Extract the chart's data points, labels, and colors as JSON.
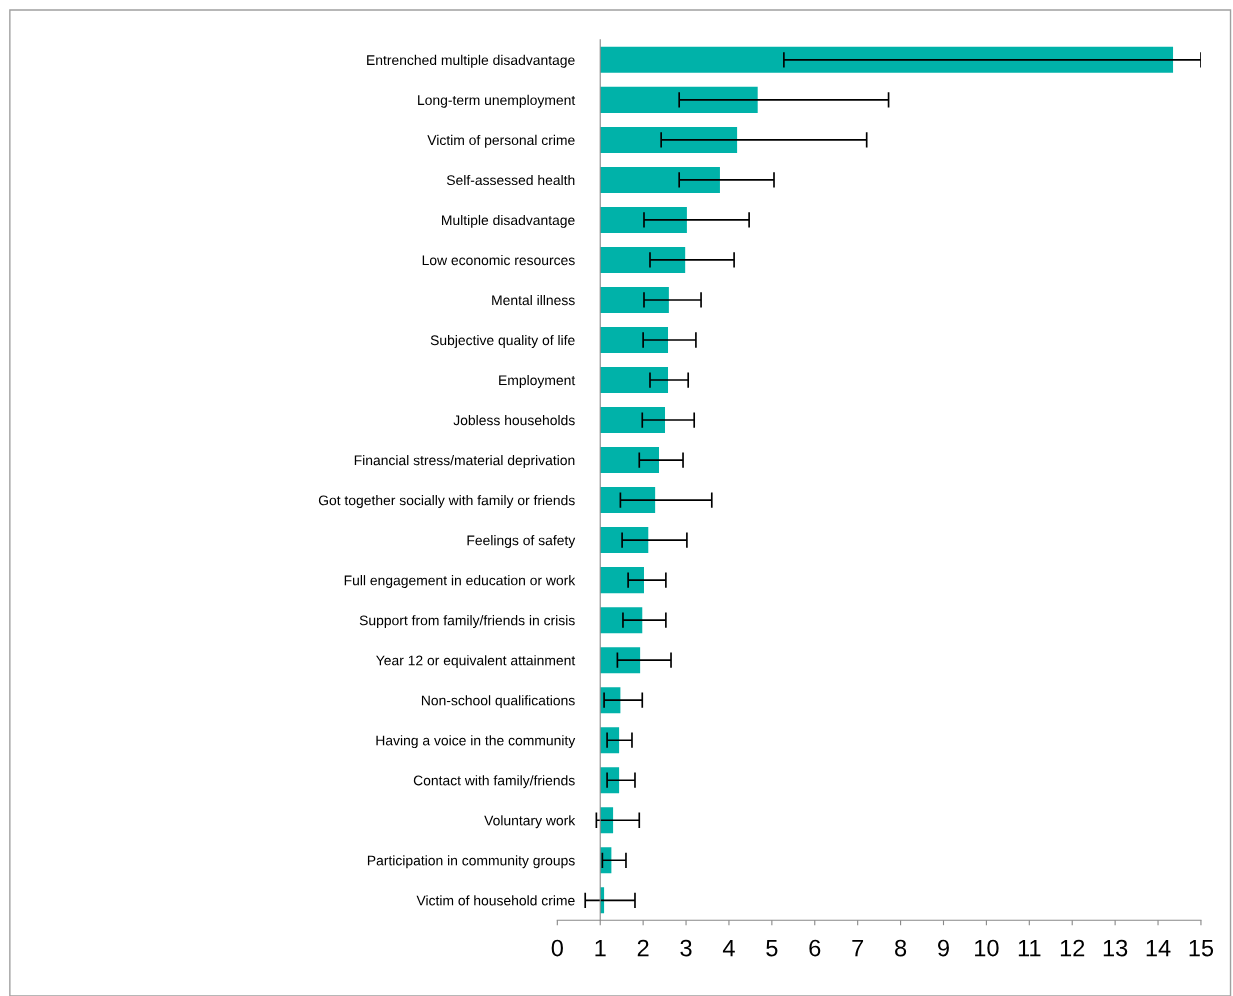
{
  "chart_data": {
    "type": "bar",
    "orientation": "horizontal",
    "categories": [
      "Entrenched multiple disadvantage",
      "Long-term unemployment",
      "Victim of personal crime",
      "Self-assessed health",
      "Multiple disadvantage",
      "Low economic resources",
      "Mental illness",
      "Subjective quality of life",
      "Employment",
      "Jobless households",
      "Financial stress/material deprivation",
      "Got together socially with family or friends",
      "Feelings of safety",
      "Full engagement in education or work",
      "Support from family/friends in crisis",
      "Year 12 or equivalent attainment",
      "Non-school qualifications",
      "Having a voice in the community",
      "Contact with family/friends",
      "Voluntary work",
      "Participation in community groups",
      "Victim of household crime"
    ],
    "base": [
      1,
      1,
      1,
      1,
      1,
      1,
      1,
      1,
      1,
      1,
      1,
      1,
      1,
      1,
      1,
      1,
      1,
      1,
      1,
      1,
      1,
      1
    ],
    "values": [
      13.35,
      3.67,
      3.19,
      2.79,
      2.02,
      1.98,
      1.6,
      1.58,
      1.58,
      1.51,
      1.37,
      1.28,
      1.12,
      1.02,
      0.98,
      0.93,
      0.47,
      0.44,
      0.44,
      0.3,
      0.26,
      0.09
    ],
    "errors": [
      [
        5.28,
        15
      ],
      [
        2.84,
        7.72
      ],
      [
        2.42,
        7.21
      ],
      [
        2.84,
        5.05
      ],
      [
        2.02,
        4.47
      ],
      [
        2.16,
        4.12
      ],
      [
        2.02,
        3.35
      ],
      [
        2.0,
        3.23
      ],
      [
        2.16,
        3.05
      ],
      [
        1.98,
        3.19
      ],
      [
        1.91,
        2.93
      ],
      [
        1.47,
        3.6
      ],
      [
        1.51,
        3.02
      ],
      [
        1.65,
        2.53
      ],
      [
        1.53,
        2.53
      ],
      [
        1.4,
        2.65
      ],
      [
        1.09,
        1.98
      ],
      [
        1.16,
        1.74
      ],
      [
        1.16,
        1.81
      ],
      [
        0.91,
        1.91
      ],
      [
        1.05,
        1.6
      ],
      [
        0.65,
        1.81
      ]
    ],
    "color": "#00b2a9",
    "xlim": [
      0,
      15
    ],
    "xticks": [
      0,
      1,
      2,
      3,
      4,
      5,
      6,
      7,
      8,
      9,
      10,
      11,
      12,
      13,
      14,
      15
    ],
    "tick_labels": "xy"
  }
}
